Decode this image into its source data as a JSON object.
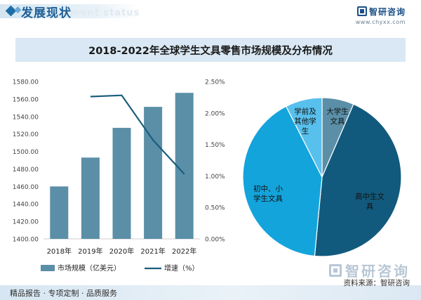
{
  "header": {
    "section_title": "发展现状",
    "watermark_text": "ment status",
    "brand_name": "智研咨询",
    "brand_url": "www.chyxx.com"
  },
  "chart_data": [
    {
      "type": "bar",
      "title": "2018-2022年全球学生文具零售市场规模及分布情况",
      "categories": [
        "2018年",
        "2019年",
        "2020年",
        "2021年",
        "2022年"
      ],
      "series": [
        {
          "name": "市场规模（亿美元）",
          "type": "bar",
          "axis": "left",
          "values": [
            1460,
            1493,
            1527,
            1551,
            1567
          ],
          "color": "#5b8fa8"
        },
        {
          "name": "增速（%）",
          "type": "line",
          "axis": "right",
          "values": [
            null,
            2.26,
            2.28,
            1.57,
            1.03
          ],
          "color": "#1b5d7e"
        }
      ],
      "y_left": {
        "ylim": [
          1400,
          1580
        ],
        "ticks": [
          "1400.00",
          "1420.00",
          "1440.00",
          "1460.00",
          "1480.00",
          "1500.00",
          "1520.00",
          "1540.00",
          "1560.00",
          "1580.00"
        ]
      },
      "y_right": {
        "ylim": [
          0,
          2.5
        ],
        "ticks": [
          "0.00%",
          "0.50%",
          "1.00%",
          "1.50%",
          "2.00%",
          "2.50%"
        ]
      },
      "legend_position": "bottom",
      "grid": false
    },
    {
      "type": "pie",
      "slices": [
        {
          "label": "大学生文具",
          "value": 6.5,
          "color": "#5b8fa8"
        },
        {
          "label": "高中生文具",
          "value": 45,
          "color": "#125a7d"
        },
        {
          "label": "初中、小学生文具",
          "value": 41,
          "color": "#14a4dc"
        },
        {
          "label": "学前及其他学生",
          "value": 7.5,
          "color": "#58c0ec"
        }
      ]
    }
  ],
  "legend": {
    "bar_label": "市场规模（亿美元）",
    "line_label": "增速（%）"
  },
  "pie_labels": {
    "daxue": [
      "大学生",
      "文具"
    ],
    "gaozhong": [
      "高中生文",
      "具"
    ],
    "chuzhong": [
      "初中、小",
      "学生文具"
    ],
    "xueqian": [
      "学前及",
      "其他学",
      "生"
    ]
  },
  "footer": {
    "left_text": "精品报告 · 专项定制 · 品质服务",
    "source_text": "资料来源：智研咨询",
    "big_brand": "智研咨询"
  }
}
